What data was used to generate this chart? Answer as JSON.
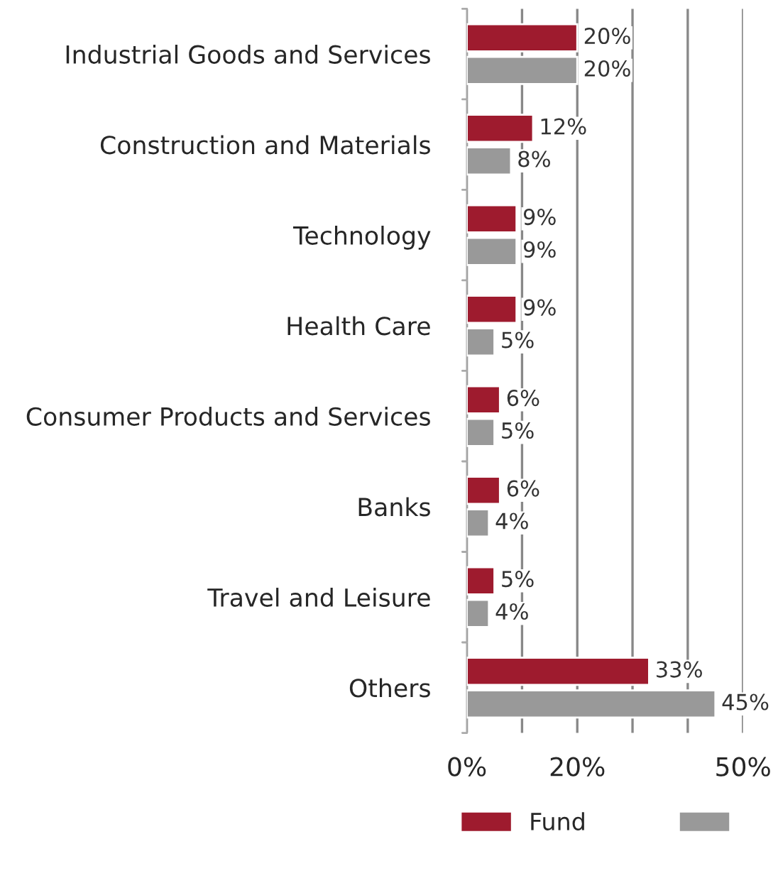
{
  "chart_data": {
    "type": "bar",
    "orientation": "horizontal",
    "categories": [
      "Industrial Goods and Services",
      "Construction and Materials",
      "Technology",
      "Health Care",
      "Consumer Products and Services",
      "Banks",
      "Travel and Leisure",
      "Others"
    ],
    "series": [
      {
        "name": "Fund",
        "color": "#9e1b2e",
        "values": [
          20,
          12,
          9,
          9,
          6,
          6,
          5,
          33
        ],
        "value_labels": [
          "20%",
          "12%",
          "9%",
          "9%",
          "6%",
          "6%",
          "5%",
          "33%"
        ]
      },
      {
        "color": "#999999",
        "values": [
          20,
          8,
          9,
          5,
          5,
          4,
          4,
          45
        ],
        "value_labels": [
          "20%",
          "8%",
          "9%",
          "5%",
          "5%",
          "4%",
          "4%",
          "45%"
        ]
      }
    ],
    "xlim": [
      0,
      50
    ],
    "xticks": [
      {
        "value": 0,
        "label": "0%"
      },
      {
        "value": 10,
        "label": null
      },
      {
        "value": 20,
        "label": "20%"
      },
      {
        "value": 30,
        "label": null
      },
      {
        "value": 40,
        "label": null
      },
      {
        "value": 50,
        "label": "50%"
      }
    ],
    "grid": "x",
    "legend": "bottom"
  }
}
